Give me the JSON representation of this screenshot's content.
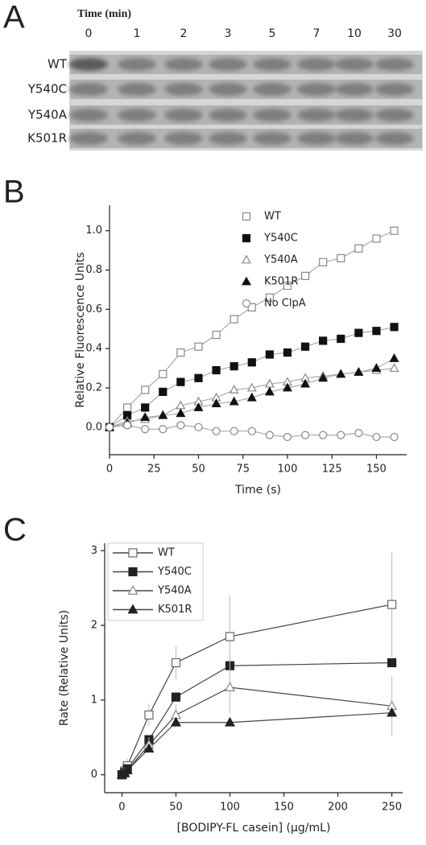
{
  "gel": {
    "label": "A",
    "title": "Time (min)",
    "lanes": [
      "0",
      "1",
      "2",
      "3",
      "5",
      "7",
      "10",
      "30"
    ],
    "rows": [
      "WT",
      "Y540C",
      "Y540A",
      "K501R"
    ]
  },
  "chart_data": [
    {
      "type": "line",
      "label": "B",
      "xlabel": "Time (s)",
      "ylabel": "Relative Fluorescence Units",
      "x": [
        0,
        10,
        20,
        30,
        40,
        50,
        60,
        70,
        80,
        90,
        100,
        110,
        120,
        130,
        140,
        150,
        160
      ],
      "xlim": [
        0,
        167
      ],
      "xticks": [
        0,
        25,
        50,
        75,
        100,
        125,
        150
      ],
      "ylim": [
        -0.14,
        1.13
      ],
      "yticks": [
        {
          "value": 0,
          "label": "0.0"
        },
        {
          "value": 0.2,
          "label": "0.2"
        },
        {
          "value": 0.4,
          "label": "0.4"
        },
        {
          "value": 0.6,
          "label": "0.6"
        },
        {
          "value": 0.8,
          "label": "0.8"
        },
        {
          "value": 1,
          "label": "1.0"
        }
      ],
      "legend": "top",
      "legend_frame": false,
      "line_color": "#aaaaaa",
      "series": [
        {
          "name": "WT",
          "color": "#888888",
          "marker": "square",
          "filled": false,
          "values": [
            0,
            0.1,
            0.19,
            0.27,
            0.38,
            0.41,
            0.47,
            0.55,
            0.61,
            0.66,
            0.72,
            0.77,
            0.84,
            0.86,
            0.91,
            0.96,
            1.0
          ]
        },
        {
          "name": "Y540C",
          "color": "#111111",
          "marker": "square",
          "filled": true,
          "values": [
            0,
            0.06,
            0.1,
            0.18,
            0.23,
            0.25,
            0.29,
            0.31,
            0.33,
            0.37,
            0.38,
            0.41,
            0.44,
            0.45,
            0.48,
            0.49,
            0.51
          ]
        },
        {
          "name": "Y540A",
          "color": "#888888",
          "marker": "triangle",
          "filled": false,
          "values": [
            0,
            0.03,
            0.04,
            0.06,
            0.11,
            0.13,
            0.15,
            0.19,
            0.2,
            0.22,
            0.23,
            0.25,
            0.26,
            0.27,
            0.28,
            0.29,
            0.3
          ]
        },
        {
          "name": "K501R",
          "color": "#111111",
          "marker": "triangle",
          "filled": true,
          "values": [
            0,
            0.02,
            0.05,
            0.06,
            0.07,
            0.1,
            0.12,
            0.13,
            0.15,
            0.18,
            0.2,
            0.22,
            0.25,
            0.27,
            0.28,
            0.3,
            0.35
          ]
        },
        {
          "name": "No ClpA",
          "color": "#888888",
          "marker": "circle",
          "filled": false,
          "values": [
            0,
            0.01,
            -0.01,
            -0.01,
            0.01,
            0,
            -0.02,
            -0.02,
            -0.02,
            -0.04,
            -0.05,
            -0.04,
            -0.04,
            -0.04,
            -0.03,
            -0.05,
            -0.05
          ]
        }
      ]
    },
    {
      "type": "line",
      "label": "C",
      "xlabel": "[BODIPY-FL casein] (μg/mL)",
      "ylabel": "Rate (Relative Units)",
      "x": [
        0,
        2.5,
        5,
        25,
        50,
        100,
        250
      ],
      "xlim": [
        -16,
        260
      ],
      "xticks": [
        0,
        50,
        100,
        150,
        200,
        250
      ],
      "ylim": [
        -0.24,
        3.1
      ],
      "yticks": [
        0,
        1,
        2,
        3
      ],
      "legend": "top-left",
      "legend_frame": true,
      "line_color": "#444444",
      "series": [
        {
          "name": "WT",
          "color": "#666666",
          "marker": "square",
          "filled": false,
          "values": [
            0,
            0.05,
            0.12,
            0.8,
            1.5,
            1.85,
            2.28
          ],
          "errors": [
            0,
            0,
            0.1,
            0.15,
            0.22,
            0.55,
            0.7
          ]
        },
        {
          "name": "Y540C",
          "color": "#222222",
          "marker": "square",
          "filled": true,
          "values": [
            0,
            0.03,
            0.08,
            0.47,
            1.04,
            1.46,
            1.5
          ]
        },
        {
          "name": "Y540A",
          "color": "#888888",
          "marker": "triangle",
          "filled": false,
          "values": [
            0,
            0.03,
            0.06,
            0.4,
            0.8,
            1.17,
            0.92
          ],
          "errors": [
            0,
            0,
            0.05,
            0.1,
            0.15,
            0.35,
            0.4
          ]
        },
        {
          "name": "K501R",
          "color": "#222222",
          "marker": "triangle",
          "filled": true,
          "values": [
            0,
            0.02,
            0.06,
            0.35,
            0.7,
            0.7,
            0.83
          ]
        }
      ]
    }
  ]
}
